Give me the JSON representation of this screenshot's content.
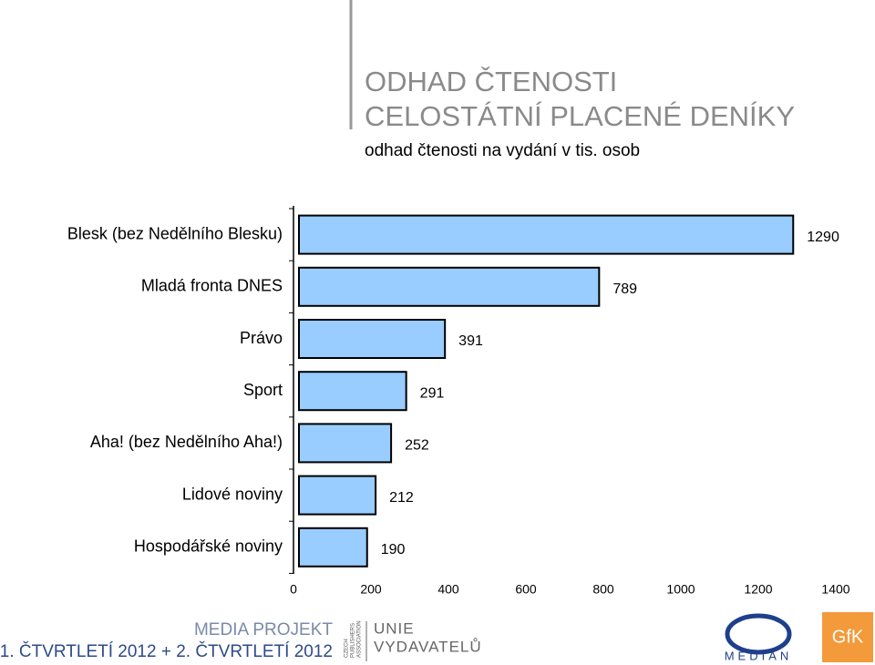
{
  "header": {
    "title_line1": "ODHAD ČTENOSTI",
    "title_line2": "CELOSTÁTNÍ PLACENÉ DENÍKY",
    "subtitle": "odhad čtenosti na vydání v tis. osob"
  },
  "chart_data": {
    "type": "bar",
    "orientation": "horizontal",
    "categories": [
      "Blesk (bez Nedělního Blesku)",
      "Mladá fronta DNES",
      "Právo",
      "Sport",
      "Aha! (bez Nedělního Aha!)",
      "Lidové noviny",
      "Hospodářské noviny"
    ],
    "values": [
      1290,
      789,
      391,
      291,
      252,
      212,
      190
    ],
    "color": "#99ccff",
    "xlim": [
      0,
      1400
    ],
    "xticks": [
      0,
      200,
      400,
      600,
      800,
      1000,
      1200,
      1400
    ]
  },
  "footer": {
    "project": "MEDIA PROJEKT",
    "period": "1. ČTVRTLETÍ 2012 + 2. ČTVRTLETÍ 2012",
    "association_en": [
      "CZECH",
      "PUBLISHERS",
      "ASSOCIATION"
    ],
    "association_cz": [
      "UNIE",
      "VYDAVATELŮ"
    ],
    "median": "MEDIAN",
    "gfk": "GfK"
  }
}
